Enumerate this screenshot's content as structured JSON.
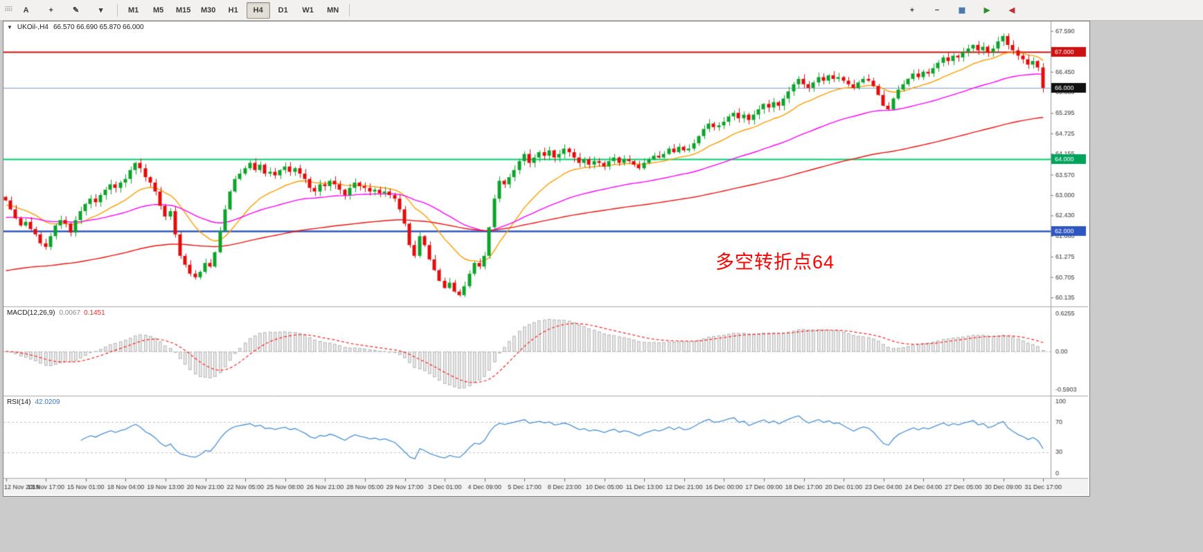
{
  "toolbar": {
    "left_icons": [
      {
        "name": "text-tool-icon",
        "glyph": "A"
      },
      {
        "name": "crosshair-tool-icon",
        "glyph": "+"
      },
      {
        "name": "draw-tools-icon",
        "glyph": "✎"
      },
      {
        "name": "dropdown-arrow-icon",
        "glyph": "▾"
      }
    ],
    "timeframes": [
      "M1",
      "M5",
      "M15",
      "M30",
      "H1",
      "H4",
      "D1",
      "W1",
      "MN"
    ],
    "selected_timeframe": "H4",
    "right_icons": [
      {
        "name": "zoom-in-icon",
        "glyph": "+",
        "color": "#3a3a3a"
      },
      {
        "name": "zoom-out-icon",
        "glyph": "−",
        "color": "#3a3a3a"
      },
      {
        "name": "tile-windows-icon",
        "glyph": "▦",
        "color": "#3a6ea5"
      },
      {
        "name": "auto-scroll-icon",
        "glyph": "▶",
        "color": "#2e8b2e"
      },
      {
        "name": "chart-shift-icon",
        "glyph": "◀",
        "color": "#c03030"
      }
    ]
  },
  "chart": {
    "dropdown_glyph": "▼",
    "symbol_label": "UKOil-,H4",
    "ohlc": "66.570 66.690 65.870 66.000"
  },
  "chart_data": {
    "type": "candlestick",
    "symbol": "UKOil",
    "timeframe": "H4",
    "current_ohlc": {
      "open": 66.57,
      "high": 66.69,
      "low": 65.87,
      "close": 66.0
    },
    "price_range": {
      "min": 60.0,
      "max": 67.78
    },
    "y_ticks": [
      67.59,
      66.45,
      65.88,
      65.295,
      64.725,
      64.155,
      63.57,
      63.0,
      62.43,
      61.86,
      61.275,
      60.705,
      60.135
    ],
    "highlight_labels": [
      {
        "value": 67.0,
        "bg": "#cc1111"
      },
      {
        "value": 66.0,
        "bg": "#101010"
      },
      {
        "value": 64.0,
        "bg": "#00a35c"
      },
      {
        "value": 62.0,
        "bg": "#2e56c0"
      }
    ],
    "hlines": [
      {
        "value": 67.0,
        "color": "#cc1111",
        "width": 2
      },
      {
        "value": 66.0,
        "color": "#7d9ec8",
        "width": 1
      },
      {
        "value": 64.0,
        "color": "#00cf6e",
        "width": 2
      },
      {
        "value": 62.0,
        "color": "#2e56c0",
        "width": 2.5
      }
    ],
    "moving_averages": [
      {
        "period": 16,
        "seed": 62.7,
        "color": "#ff9d00"
      },
      {
        "period": 50,
        "seed": 62.35,
        "color": "#ff00ff"
      },
      {
        "period": 130,
        "seed": 60.85,
        "color": "#ee1111"
      }
    ],
    "colors": {
      "up": "#0da32b",
      "down": "#e30b0b",
      "macd_hist_fill": "#ececec",
      "macd_hist_stroke": "#b5b5b5",
      "macd_signal": "#ff2020",
      "rsi_line": "#4a8fd4"
    },
    "closes": [
      62.85,
      62.6,
      62.35,
      62.15,
      62.25,
      62.05,
      61.9,
      61.65,
      61.55,
      61.85,
      62.15,
      62.3,
      62.2,
      61.95,
      62.3,
      62.55,
      62.75,
      62.9,
      62.8,
      63.0,
      63.15,
      63.3,
      63.2,
      63.35,
      63.45,
      63.7,
      63.9,
      63.75,
      63.5,
      63.35,
      63.1,
      62.7,
      62.4,
      62.55,
      61.9,
      61.3,
      61.05,
      60.8,
      60.7,
      60.85,
      61.1,
      61.0,
      61.4,
      62.0,
      62.6,
      63.1,
      63.45,
      63.6,
      63.75,
      63.9,
      63.7,
      63.85,
      63.6,
      63.65,
      63.55,
      63.7,
      63.8,
      63.65,
      63.75,
      63.6,
      63.45,
      63.2,
      63.1,
      63.3,
      63.25,
      63.4,
      63.3,
      63.15,
      63.0,
      63.2,
      63.35,
      63.25,
      63.2,
      63.1,
      63.15,
      63.05,
      63.1,
      63.0,
      62.9,
      62.6,
      62.2,
      61.6,
      61.3,
      61.85,
      61.6,
      61.2,
      60.9,
      60.6,
      60.4,
      60.55,
      60.3,
      60.2,
      60.45,
      60.8,
      61.1,
      61.0,
      61.3,
      62.1,
      62.9,
      63.4,
      63.3,
      63.5,
      63.7,
      63.95,
      64.15,
      63.9,
      64.05,
      64.2,
      64.1,
      64.25,
      64.05,
      64.15,
      64.3,
      64.2,
      64.05,
      63.9,
      64.0,
      63.85,
      63.95,
      63.9,
      63.8,
      63.95,
      64.05,
      63.9,
      64.0,
      63.95,
      63.85,
      63.75,
      63.9,
      64.0,
      64.1,
      64.05,
      64.15,
      64.3,
      64.2,
      64.35,
      64.25,
      64.3,
      64.45,
      64.65,
      64.85,
      65.0,
      64.9,
      64.95,
      65.05,
      65.2,
      65.3,
      65.15,
      65.25,
      65.1,
      65.25,
      65.4,
      65.55,
      65.45,
      65.6,
      65.5,
      65.7,
      65.9,
      66.1,
      66.25,
      66.1,
      66.0,
      66.15,
      66.3,
      66.2,
      66.35,
      66.25,
      66.3,
      66.2,
      66.1,
      66.0,
      66.15,
      66.25,
      66.2,
      66.05,
      65.8,
      65.5,
      65.4,
      65.7,
      65.95,
      66.1,
      66.25,
      66.4,
      66.3,
      66.45,
      66.4,
      66.55,
      66.7,
      66.85,
      66.75,
      66.9,
      66.85,
      67.0,
      67.1,
      67.2,
      67.05,
      67.15,
      67.0,
      67.1,
      67.3,
      67.45,
      67.2,
      67.05,
      66.9,
      66.8,
      66.65,
      66.75,
      66.57,
      66.0
    ],
    "x_labels": [
      "12 Nov 2019",
      "13 Nov 17:00",
      "15 Nov 01:00",
      "18 Nov 04:00",
      "19 Nov 13:00",
      "20 Nov 21:00",
      "22 Nov 05:00",
      "25 Nov 08:00",
      "26 Nov 21:00",
      "28 Nov 05:00",
      "29 Nov 17:00",
      "3 Dec 01:00",
      "4 Dec 09:00",
      "5 Dec 17:00",
      "8 Dec 23:00",
      "10 Dec 05:00",
      "11 Dec 13:00",
      "12 Dec 21:00",
      "16 Dec 00:00",
      "17 Dec 09:00",
      "18 Dec 17:00",
      "20 Dec 01:00",
      "23 Dec 04:00",
      "24 Dec 04:00",
      "27 Dec 05:00",
      "30 Dec 09:00",
      "31 Dec 17:00"
    ],
    "indicators": {
      "macd": {
        "label": "MACD(12,26,9)",
        "value_main": "0.0067",
        "value_signal": "0.1451",
        "fast": 12,
        "slow": 26,
        "signal": 9,
        "scale_labels": [
          "0.6255",
          "0.00",
          "-0.5903"
        ]
      },
      "rsi": {
        "label": "RSI(14)",
        "value": "42.0209",
        "period": 14,
        "scale_labels": [
          "100",
          "70",
          "30",
          "0"
        ],
        "level_lines": [
          70,
          30
        ]
      }
    },
    "annotation": {
      "text": "多空转折点64",
      "color": "#ff0000"
    }
  }
}
